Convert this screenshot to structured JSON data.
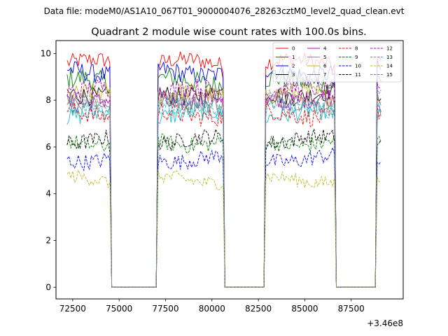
{
  "figure": {
    "suptitle": "Data file: modeM0/AS1A10_067T01_9000004076_28263cztM0_level2_quad_clean.evt"
  },
  "chart_data": {
    "type": "line",
    "title": "Quadrant 2 module wise count rates with 100.0s bins.",
    "xlabel": "",
    "ylabel": "",
    "x_offset_label": "+3.46e8",
    "xlim": [
      71600,
      90300
    ],
    "ylim": [
      -0.5,
      10.55
    ],
    "x_ticks": [
      72500,
      75000,
      77500,
      80000,
      82500,
      85000,
      87500
    ],
    "x_tick_labels": [
      "72500",
      "75000",
      "77500",
      "80000",
      "82500",
      "85000",
      "87500"
    ],
    "y_ticks": [
      0,
      2,
      4,
      6,
      8,
      10
    ],
    "y_tick_labels": [
      "0",
      "2",
      "4",
      "6",
      "8",
      "10"
    ],
    "grid": false,
    "legend_position": "top-right",
    "active_segments": [
      [
        72200,
        74500
      ],
      [
        77100,
        80600
      ],
      [
        82900,
        86600
      ],
      [
        88900,
        89100
      ]
    ],
    "bin_seconds": 100,
    "series": [
      {
        "name": "0",
        "color": "#ff0000",
        "dash": "solid",
        "level": 9.6,
        "amp": 0.35
      },
      {
        "name": "1",
        "color": "#008000",
        "dash": "solid",
        "level": 8.8,
        "amp": 0.45
      },
      {
        "name": "2",
        "color": "#0000ff",
        "dash": "solid",
        "level": 9.2,
        "amp": 0.4
      },
      {
        "name": "3",
        "color": "#000000",
        "dash": "solid",
        "level": 8.3,
        "amp": 0.4
      },
      {
        "name": "4",
        "color": "#bf00bf",
        "dash": "solid",
        "level": 8.0,
        "amp": 0.4
      },
      {
        "name": "5",
        "color": "#17becf",
        "dash": "solid",
        "level": 7.4,
        "amp": 0.4
      },
      {
        "name": "6",
        "color": "#bcbd22",
        "dash": "solid",
        "level": 8.2,
        "amp": 0.4
      },
      {
        "name": "7",
        "color": "#808080",
        "dash": "solid",
        "level": 7.9,
        "amp": 0.4
      },
      {
        "name": "8",
        "color": "#ff0000",
        "dash": "dashed",
        "level": 7.4,
        "amp": 0.4
      },
      {
        "name": "9",
        "color": "#008000",
        "dash": "dashed",
        "level": 6.2,
        "amp": 0.35
      },
      {
        "name": "10",
        "color": "#0000ff",
        "dash": "dashed",
        "level": 5.5,
        "amp": 0.35
      },
      {
        "name": "11",
        "color": "#000000",
        "dash": "dashed",
        "level": 6.3,
        "amp": 0.35
      },
      {
        "name": "12",
        "color": "#bf00bf",
        "dash": "dashed",
        "level": 8.4,
        "amp": 0.4
      },
      {
        "name": "13",
        "color": "#17becf",
        "dash": "dashed",
        "level": 7.6,
        "amp": 0.4
      },
      {
        "name": "14",
        "color": "#bcbd22",
        "dash": "dashed",
        "level": 4.6,
        "amp": 0.3
      },
      {
        "name": "15",
        "color": "#808080",
        "dash": "dashed",
        "level": 8.0,
        "amp": 0.4
      }
    ]
  }
}
